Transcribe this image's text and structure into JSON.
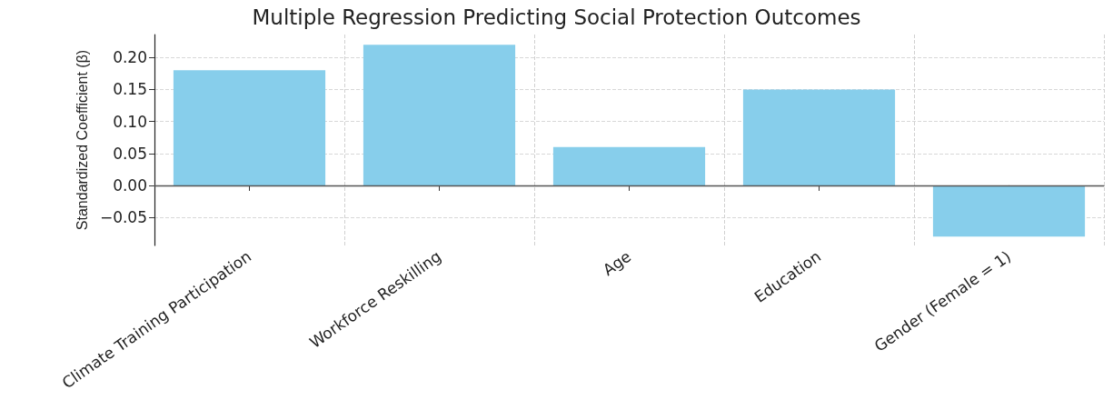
{
  "chart_data": {
    "type": "bar",
    "title": "Multiple Regression Predicting Social Protection Outcomes",
    "ylabel": "Standardized Coefficient (β)",
    "categories": [
      "Climate Training Participation",
      "Workforce Reskilling",
      "Age",
      "Education",
      "Gender (Female = 1)"
    ],
    "values": [
      0.18,
      0.22,
      0.06,
      0.15,
      -0.08
    ],
    "color": "#87ceeb",
    "ylim": [
      -0.094,
      0.236
    ],
    "yticks": [
      {
        "value": -0.05,
        "label": "−0.05"
      },
      {
        "value": 0,
        "label": "0.00"
      },
      {
        "value": 0.05,
        "label": "0.05"
      },
      {
        "value": 0.1,
        "label": "0.10"
      },
      {
        "value": 0.15,
        "label": "0.15"
      },
      {
        "value": 0.2,
        "label": "0.20"
      }
    ],
    "ref_lines": [
      {
        "axis": "y",
        "value": 0,
        "color": "#555555",
        "line_style": "solid"
      }
    ],
    "grid": true
  }
}
